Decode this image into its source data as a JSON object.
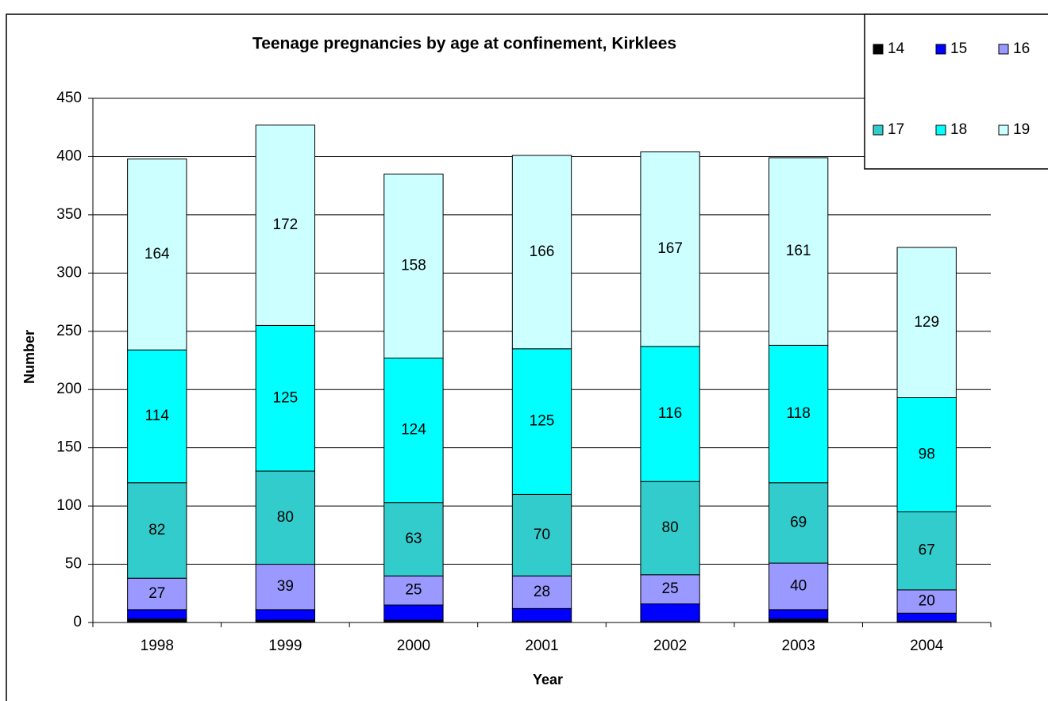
{
  "chart_data": {
    "type": "stacked_bar",
    "title": "Teenage pregnancies by age at confinement, Kirklees",
    "x_label": "Year",
    "y_label": "Number",
    "categories": [
      "1998",
      "1999",
      "2000",
      "2001",
      "2002",
      "2003",
      "2004"
    ],
    "series": [
      {
        "name": "14",
        "color": "#000000",
        "values": [
          3,
          2,
          2,
          1,
          1,
          3,
          1
        ],
        "show_labels": false
      },
      {
        "name": "15",
        "color": "#0000ff",
        "values": [
          8,
          9,
          13,
          11,
          15,
          8,
          7
        ],
        "show_labels": false
      },
      {
        "name": "16",
        "color": "#9999ff",
        "values": [
          27,
          39,
          25,
          28,
          25,
          40,
          20
        ],
        "show_labels": true
      },
      {
        "name": "17",
        "color": "#33cccc",
        "values": [
          82,
          80,
          63,
          70,
          80,
          69,
          67
        ],
        "show_labels": true
      },
      {
        "name": "18",
        "color": "#00ffff",
        "values": [
          114,
          125,
          124,
          125,
          116,
          118,
          98
        ],
        "show_labels": true
      },
      {
        "name": "19",
        "color": "#ccffff",
        "values": [
          164,
          172,
          158,
          166,
          167,
          161,
          129
        ],
        "show_labels": true
      }
    ],
    "ylim": [
      0,
      450
    ],
    "yticks": [
      0,
      50,
      100,
      150,
      200,
      250,
      300,
      350,
      400,
      450
    ],
    "grid": true,
    "legend": "top-right"
  }
}
